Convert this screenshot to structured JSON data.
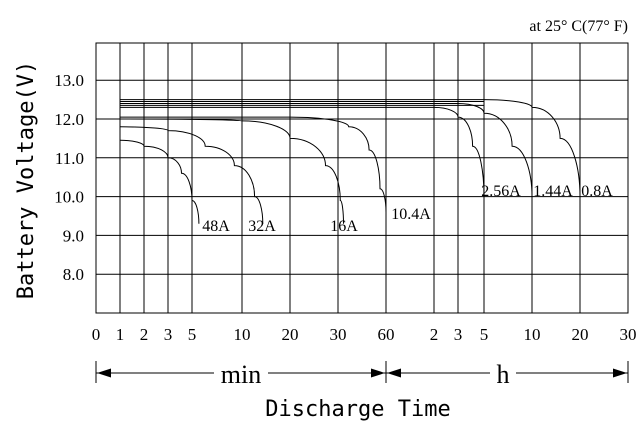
{
  "chart_data": {
    "type": "line",
    "annotation": "at 25° C(77° F)",
    "ylabel": "Battery Voltage(V)",
    "xlabel": "Discharge Time",
    "y_ticks": [
      "8.0",
      "9.0",
      "10.0",
      "11.0",
      "12.0",
      "13.0"
    ],
    "ylim": [
      7.0,
      14.0
    ],
    "x_tick_labels": [
      "0",
      "1",
      "2",
      "3",
      "5",
      "10",
      "20",
      "30",
      "60",
      "2",
      "3",
      "5",
      "10",
      "20",
      "30"
    ],
    "x_units": {
      "min_label": "min",
      "h_label": "h"
    },
    "series": [
      {
        "name": "48A",
        "points": [
          [
            1,
            11.45
          ],
          [
            2,
            11.3
          ],
          [
            3,
            11.0
          ],
          [
            4,
            10.6
          ],
          [
            5,
            9.9
          ],
          [
            5.5,
            9.3
          ]
        ]
      },
      {
        "name": "32A",
        "points": [
          [
            1,
            11.8
          ],
          [
            3,
            11.7
          ],
          [
            6,
            11.3
          ],
          [
            9,
            10.8
          ],
          [
            12,
            10.0
          ],
          [
            13.5,
            9.3
          ]
        ]
      },
      {
        "name": "16A",
        "points": [
          [
            1,
            12.0
          ],
          [
            10,
            11.95
          ],
          [
            20,
            11.5
          ],
          [
            27,
            10.8
          ],
          [
            31,
            9.9
          ],
          [
            32.5,
            9.3
          ]
        ]
      },
      {
        "name": "10.4A",
        "points": [
          [
            1,
            12.05
          ],
          [
            20,
            12.05
          ],
          [
            35,
            11.8
          ],
          [
            47,
            11.2
          ],
          [
            55,
            10.2
          ],
          [
            60,
            9.6
          ]
        ]
      },
      {
        "name": "2.56A",
        "points": [
          [
            1,
            12.3
          ],
          [
            120,
            12.3
          ],
          [
            180,
            12.05
          ],
          [
            240,
            11.3
          ],
          [
            300,
            10.0
          ]
        ]
      },
      {
        "name": "1.44A",
        "points": [
          [
            1,
            12.4
          ],
          [
            180,
            12.4
          ],
          [
            300,
            12.15
          ],
          [
            450,
            11.3
          ],
          [
            600,
            10.0
          ]
        ]
      },
      {
        "name": "0.8A",
        "points": [
          [
            1,
            12.5
          ],
          [
            300,
            12.5
          ],
          [
            600,
            12.3
          ],
          [
            900,
            11.5
          ],
          [
            1200,
            10.0
          ]
        ]
      }
    ],
    "extra_lines": [
      12.45,
      12.35
    ],
    "grid": true
  }
}
